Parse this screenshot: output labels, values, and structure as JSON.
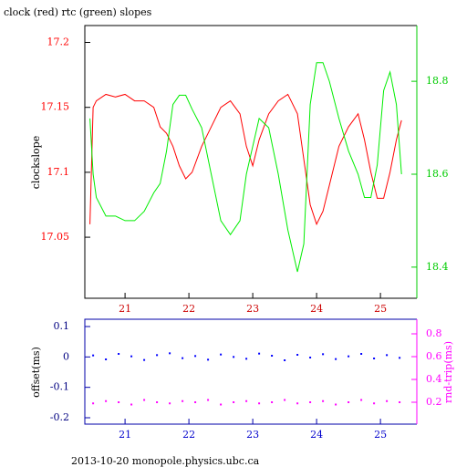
{
  "chart_data": [
    {
      "type": "line",
      "title": "clock (red) rtc (green) slopes",
      "ylabel": "clockslope",
      "x": [
        20.45,
        20.5,
        20.55,
        20.7,
        20.85,
        21.0,
        21.15,
        21.3,
        21.45,
        21.55,
        21.65,
        21.75,
        21.85,
        21.95,
        22.05,
        22.2,
        22.35,
        22.5,
        22.65,
        22.8,
        22.9,
        23.0,
        23.1,
        23.25,
        23.4,
        23.55,
        23.7,
        23.8,
        23.9,
        24.0,
        24.1,
        24.2,
        24.35,
        24.5,
        24.65,
        24.75,
        24.85,
        24.95,
        25.05,
        25.15,
        25.25,
        25.33
      ],
      "series": [
        {
          "color": "#ff0000",
          "axis": "y",
          "values": [
            17.06,
            17.15,
            17.155,
            17.16,
            17.158,
            17.16,
            17.155,
            17.155,
            17.15,
            17.135,
            17.13,
            17.12,
            17.105,
            17.095,
            17.1,
            17.12,
            17.135,
            17.15,
            17.155,
            17.145,
            17.12,
            17.105,
            17.125,
            17.145,
            17.155,
            17.16,
            17.145,
            17.11,
            17.075,
            17.06,
            17.07,
            17.09,
            17.12,
            17.135,
            17.145,
            17.125,
            17.1,
            17.08,
            17.08,
            17.1,
            17.125,
            17.14
          ]
        },
        {
          "color": "#00ee00",
          "axis": "y2",
          "values": [
            18.72,
            18.6,
            18.55,
            18.51,
            18.51,
            18.5,
            18.5,
            18.52,
            18.56,
            18.58,
            18.65,
            18.75,
            18.77,
            18.77,
            18.74,
            18.7,
            18.6,
            18.5,
            18.47,
            18.5,
            18.6,
            18.66,
            18.72,
            18.7,
            18.6,
            18.48,
            18.39,
            18.45,
            18.75,
            18.84,
            18.84,
            18.8,
            18.72,
            18.65,
            18.6,
            18.55,
            18.55,
            18.62,
            18.78,
            18.82,
            18.75,
            18.6
          ]
        }
      ],
      "xlim": [
        20.37,
        25.57
      ],
      "xticks": [
        21,
        22,
        23,
        24,
        25
      ],
      "ylim": [
        17.003,
        17.213
      ],
      "yticks": [
        17.05,
        17.1,
        17.15,
        17.2
      ],
      "y2lim": [
        18.333,
        18.92
      ],
      "y2ticks": [
        18.4,
        18.6,
        18.8
      ]
    },
    {
      "type": "scatter",
      "ylabel": "offset(ms)",
      "y2label": "rnd-trip(ms)",
      "x": [
        20.5,
        20.7,
        20.9,
        21.1,
        21.3,
        21.5,
        21.7,
        21.9,
        22.1,
        22.3,
        22.5,
        22.7,
        22.9,
        23.1,
        23.3,
        23.5,
        23.7,
        23.9,
        24.1,
        24.3,
        24.5,
        24.7,
        24.9,
        25.1,
        25.3
      ],
      "series": [
        {
          "color": "#0000ff",
          "axis": "y",
          "values": [
            0.005,
            -0.008,
            0.01,
            0.002,
            -0.01,
            0.006,
            0.012,
            -0.004,
            0.003,
            -0.009,
            0.008,
            0,
            -0.006,
            0.011,
            0.004,
            -0.011,
            0.007,
            -0.002,
            0.009,
            -0.007,
            0.002,
            0.01,
            -0.005,
            0.006,
            -0.003
          ]
        },
        {
          "color": "#ff00ff",
          "axis": "y2",
          "values": [
            0.19,
            0.21,
            0.2,
            0.18,
            0.22,
            0.2,
            0.19,
            0.21,
            0.2,
            0.22,
            0.18,
            0.2,
            0.21,
            0.19,
            0.2,
            0.22,
            0.19,
            0.2,
            0.21,
            0.18,
            0.2,
            0.22,
            0.19,
            0.21,
            0.2
          ]
        }
      ],
      "xlim": [
        20.37,
        25.57
      ],
      "xticks": [
        21,
        22,
        23,
        24,
        25
      ],
      "ylim": [
        -0.221,
        0.124
      ],
      "yticks": [
        -0.2,
        -0.1,
        0,
        0.1
      ],
      "y2lim": [
        0.008,
        0.928
      ],
      "y2ticks": [
        0.2,
        0.4,
        0.6,
        0.8
      ]
    }
  ],
  "footer": "2013-10-20  monopole.physics.ubc.ca"
}
